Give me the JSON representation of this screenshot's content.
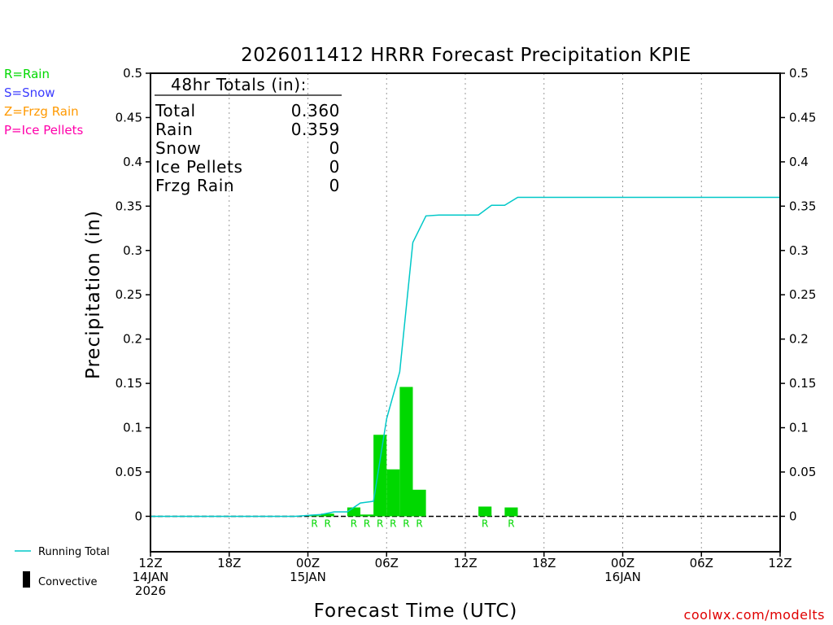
{
  "colors": {
    "rain": "#00d800",
    "snow": "#3c3cff",
    "frzg_rain": "#ff9900",
    "ice_pellets": "#ff00aa",
    "running_total": "#00c8c8",
    "convective": "#000000",
    "credit": "#e00000",
    "gridline": "#999999"
  },
  "precip_type_legend": [
    {
      "label": "R=Rain",
      "color_key": "rain"
    },
    {
      "label": "S=Snow",
      "color_key": "snow"
    },
    {
      "label": "Z=Frzg Rain",
      "color_key": "frzg_rain"
    },
    {
      "label": "P=Ice Pellets",
      "color_key": "ice_pellets"
    }
  ],
  "totals_box": {
    "header": "48hr Totals (in):",
    "rows": [
      {
        "label": "Total",
        "value": "0.360"
      },
      {
        "label": "Rain",
        "value": "0.359"
      },
      {
        "label": "Snow",
        "value": "0"
      },
      {
        "label": "Ice Pellets",
        "value": "0"
      },
      {
        "label": "Frzg Rain",
        "value": "0"
      }
    ]
  },
  "bottom_legend": {
    "running_total": "Running Total",
    "convective": "Convective"
  },
  "credit": "coolwx.com/modelts",
  "chart_data": {
    "type": "bar",
    "title": "2026011412 HRRR Forecast Precipitation KPIE",
    "xlabel": "Forecast Time (UTC)",
    "ylabel": "Precipitation (in)",
    "xlim_hours": [
      0,
      48
    ],
    "ylim": [
      -0.04,
      0.5
    ],
    "yticks": [
      0,
      0.05,
      0.1,
      0.15,
      0.2,
      0.25,
      0.3,
      0.35,
      0.4,
      0.45,
      0.5
    ],
    "ytick_labels": [
      "0",
      "0.05",
      "0.1",
      "0.15",
      "0.2",
      "0.25",
      "0.3",
      "0.35",
      "0.4",
      "0.45",
      "0.5"
    ],
    "xticks": [
      {
        "hour": 0,
        "lines": [
          "12Z",
          "14JAN",
          "2026"
        ]
      },
      {
        "hour": 6,
        "lines": [
          "18Z"
        ]
      },
      {
        "hour": 12,
        "lines": [
          "00Z",
          "15JAN"
        ]
      },
      {
        "hour": 18,
        "lines": [
          "06Z"
        ]
      },
      {
        "hour": 24,
        "lines": [
          "12Z"
        ]
      },
      {
        "hour": 30,
        "lines": [
          "18Z"
        ]
      },
      {
        "hour": 36,
        "lines": [
          "00Z",
          "16JAN"
        ]
      },
      {
        "hour": 42,
        "lines": [
          "06Z"
        ]
      },
      {
        "hour": 48,
        "lines": [
          "12Z"
        ]
      }
    ],
    "gridline_hours": [
      6,
      12,
      18,
      24,
      30,
      36,
      42
    ],
    "hourly_precip": [
      {
        "hour": 13,
        "value": 0.001,
        "type": "R"
      },
      {
        "hour": 14,
        "value": 0.003,
        "type": "R"
      },
      {
        "hour": 16,
        "value": 0.01,
        "type": "R"
      },
      {
        "hour": 17,
        "value": 0.002,
        "type": "R"
      },
      {
        "hour": 18,
        "value": 0.092,
        "type": "R"
      },
      {
        "hour": 19,
        "value": 0.053,
        "type": "R"
      },
      {
        "hour": 20,
        "value": 0.146,
        "type": "R"
      },
      {
        "hour": 21,
        "value": 0.03,
        "type": "R"
      },
      {
        "hour": 26,
        "value": 0.011,
        "type": "R"
      },
      {
        "hour": 28,
        "value": 0.01,
        "type": "R"
      }
    ],
    "running_total": [
      {
        "hour": 0,
        "value": 0
      },
      {
        "hour": 11,
        "value": 0
      },
      {
        "hour": 12,
        "value": 0.001
      },
      {
        "hour": 13,
        "value": 0.002
      },
      {
        "hour": 14,
        "value": 0.005
      },
      {
        "hour": 15,
        "value": 0.005
      },
      {
        "hour": 16,
        "value": 0.015
      },
      {
        "hour": 17,
        "value": 0.017
      },
      {
        "hour": 18,
        "value": 0.11
      },
      {
        "hour": 19,
        "value": 0.163
      },
      {
        "hour": 20,
        "value": 0.309
      },
      {
        "hour": 21,
        "value": 0.339
      },
      {
        "hour": 22,
        "value": 0.34
      },
      {
        "hour": 25,
        "value": 0.34
      },
      {
        "hour": 26,
        "value": 0.351
      },
      {
        "hour": 27,
        "value": 0.351
      },
      {
        "hour": 28,
        "value": 0.36
      },
      {
        "hour": 48,
        "value": 0.36
      }
    ]
  }
}
